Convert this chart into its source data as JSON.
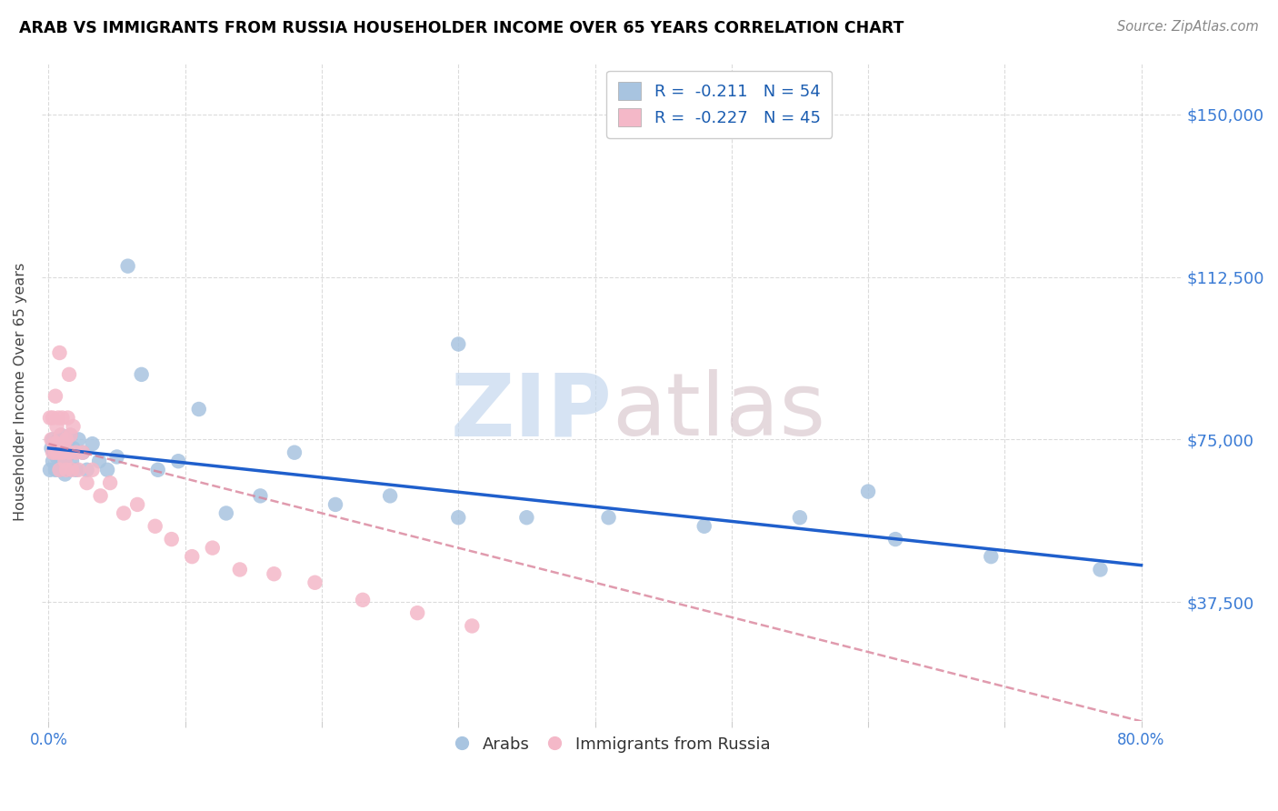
{
  "title": "ARAB VS IMMIGRANTS FROM RUSSIA HOUSEHOLDER INCOME OVER 65 YEARS CORRELATION CHART",
  "source": "Source: ZipAtlas.com",
  "ylabel": "Householder Income Over 65 years",
  "ytick_labels": [
    "$37,500",
    "$75,000",
    "$112,500",
    "$150,000"
  ],
  "ytick_values": [
    37500,
    75000,
    112500,
    150000
  ],
  "ymin": 10000,
  "ymax": 162000,
  "xmin": -0.005,
  "xmax": 0.83,
  "legend_arab": "R =  -0.211   N = 54",
  "legend_russia": "R =  -0.227   N = 45",
  "arab_color": "#a8c4e0",
  "russia_color": "#f4b8c8",
  "arab_line_color": "#1f5fcc",
  "russia_line_color": "#d9829a",
  "watermark_zip_color": "#c5d8ee",
  "watermark_atlas_color": "#d8c5cc",
  "background_color": "#ffffff",
  "grid_color": "#cccccc",
  "title_color": "#000000",
  "source_color": "#888888",
  "ytick_color": "#3a7bd5",
  "arab_scatter_x": [
    0.001,
    0.002,
    0.003,
    0.003,
    0.004,
    0.005,
    0.005,
    0.006,
    0.006,
    0.007,
    0.007,
    0.008,
    0.008,
    0.009,
    0.01,
    0.01,
    0.011,
    0.012,
    0.012,
    0.013,
    0.014,
    0.015,
    0.015,
    0.016,
    0.017,
    0.018,
    0.02,
    0.022,
    0.025,
    0.028,
    0.032,
    0.037,
    0.043,
    0.05,
    0.058,
    0.068,
    0.08,
    0.095,
    0.11,
    0.13,
    0.155,
    0.18,
    0.21,
    0.25,
    0.3,
    0.35,
    0.41,
    0.48,
    0.55,
    0.62,
    0.69,
    0.77,
    0.3,
    0.6
  ],
  "arab_scatter_y": [
    68000,
    73000,
    70000,
    75000,
    72000,
    68000,
    74000,
    71000,
    73000,
    69000,
    75000,
    68000,
    72000,
    76000,
    70000,
    74000,
    69000,
    73000,
    67000,
    71000,
    74000,
    68000,
    72000,
    76000,
    70000,
    73000,
    68000,
    75000,
    72000,
    68000,
    74000,
    70000,
    68000,
    71000,
    115000,
    90000,
    68000,
    70000,
    82000,
    58000,
    62000,
    72000,
    60000,
    62000,
    57000,
    57000,
    57000,
    55000,
    57000,
    52000,
    48000,
    45000,
    97000,
    63000
  ],
  "russia_scatter_x": [
    0.001,
    0.002,
    0.003,
    0.003,
    0.004,
    0.005,
    0.005,
    0.006,
    0.006,
    0.007,
    0.007,
    0.008,
    0.009,
    0.01,
    0.01,
    0.011,
    0.012,
    0.013,
    0.013,
    0.014,
    0.015,
    0.016,
    0.017,
    0.018,
    0.02,
    0.022,
    0.025,
    0.028,
    0.032,
    0.038,
    0.045,
    0.055,
    0.065,
    0.078,
    0.09,
    0.105,
    0.12,
    0.14,
    0.165,
    0.195,
    0.23,
    0.27,
    0.31,
    0.015,
    0.008
  ],
  "russia_scatter_y": [
    80000,
    75000,
    72000,
    80000,
    74000,
    85000,
    72000,
    78000,
    74000,
    80000,
    72000,
    68000,
    76000,
    72000,
    80000,
    74000,
    70000,
    75000,
    68000,
    80000,
    72000,
    76000,
    68000,
    78000,
    72000,
    68000,
    72000,
    65000,
    68000,
    62000,
    65000,
    58000,
    60000,
    55000,
    52000,
    48000,
    50000,
    45000,
    44000,
    42000,
    38000,
    35000,
    32000,
    90000,
    95000
  ]
}
